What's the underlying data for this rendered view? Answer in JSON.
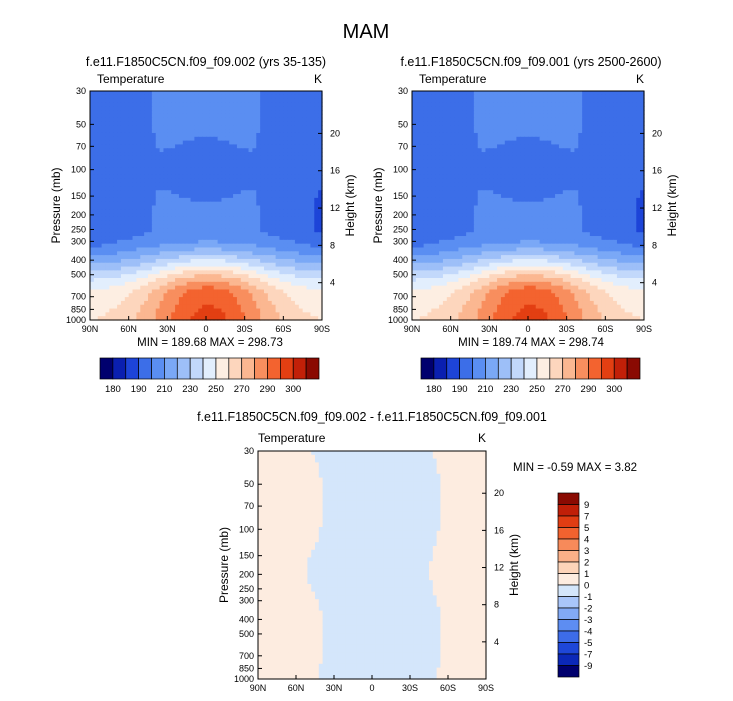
{
  "page_title": "MAM",
  "colors": {
    "temp_levels": [
      "#00006e",
      "#0a1fb0",
      "#1d44d8",
      "#3c6ee8",
      "#5a8ef2",
      "#7aa8f6",
      "#9dbff8",
      "#c2d8fb",
      "#e2eefd",
      "#fdeee2",
      "#fdd6bd",
      "#fbb791",
      "#f88e5e",
      "#f3632f",
      "#e33f12",
      "#c22008",
      "#8a0a02"
    ],
    "diff_levels": [
      "#00006e",
      "#0b28b8",
      "#1e47d8",
      "#3d6ce8",
      "#5d8df2",
      "#82aaf6",
      "#a9c6fa",
      "#d4e6fb",
      "#fdece0",
      "#fdd4b9",
      "#fbb088",
      "#f78a5a",
      "#f1622f",
      "#e03d13",
      "#c01f08",
      "#8a0a02"
    ]
  },
  "chart_data": [
    {
      "panel": "model-002",
      "type": "contour",
      "title": "f.e11.F1850C5CN.f09_f09.002 (yrs 35-135)",
      "variable_label": "Temperature",
      "units_label": "K",
      "ylabel": "Pressure (mb)",
      "y2label": "Height (km)",
      "x_ticks": [
        "90N",
        "60N",
        "30N",
        "0",
        "30S",
        "60S",
        "90S"
      ],
      "y_ticks": [
        "30",
        "50",
        "70",
        "100",
        "150",
        "200",
        "250",
        "300",
        "400",
        "500",
        "700",
        "850",
        "1000"
      ],
      "y_ticks_values": [
        30,
        50,
        70,
        100,
        150,
        200,
        250,
        300,
        400,
        500,
        700,
        850,
        1000
      ],
      "y2_ticks": [
        "20",
        "16",
        "12",
        "8",
        "4"
      ],
      "y2_ticks_values": [
        20,
        16,
        12,
        8,
        4
      ],
      "stats": "MIN = 189.68  MAX = 298.73",
      "min": 189.68,
      "max": 298.73,
      "colorbar_labels": [
        "180",
        "190",
        "210",
        "230",
        "250",
        "270",
        "290",
        "300"
      ]
    },
    {
      "panel": "model-001",
      "type": "contour",
      "title": "f.e11.F1850C5CN.f09_f09.001 (yrs 2500-2600)",
      "variable_label": "Temperature",
      "units_label": "K",
      "ylabel": "Pressure (mb)",
      "y2label": "Height (km)",
      "x_ticks": [
        "90N",
        "60N",
        "30N",
        "0",
        "30S",
        "60S",
        "90S"
      ],
      "y_ticks": [
        "30",
        "50",
        "70",
        "100",
        "150",
        "200",
        "250",
        "300",
        "400",
        "500",
        "700",
        "850",
        "1000"
      ],
      "y_ticks_values": [
        30,
        50,
        70,
        100,
        150,
        200,
        250,
        300,
        400,
        500,
        700,
        850,
        1000
      ],
      "y2_ticks": [
        "20",
        "16",
        "12",
        "8",
        "4"
      ],
      "y2_ticks_values": [
        20,
        16,
        12,
        8,
        4
      ],
      "stats": "MIN = 189.74  MAX = 298.74",
      "min": 189.74,
      "max": 298.74,
      "colorbar_labels": [
        "180",
        "190",
        "210",
        "230",
        "250",
        "270",
        "290",
        "300"
      ]
    },
    {
      "panel": "difference",
      "type": "contour",
      "title": "f.e11.F1850C5CN.f09_f09.002 - f.e11.F1850C5CN.f09_f09.001",
      "variable_label": "Temperature",
      "units_label": "K",
      "ylabel": "Pressure (mb)",
      "y2label": "Height (km)",
      "x_ticks": [
        "90N",
        "60N",
        "30N",
        "0",
        "30S",
        "60S",
        "90S"
      ],
      "y_ticks": [
        "30",
        "50",
        "70",
        "100",
        "150",
        "200",
        "250",
        "300",
        "400",
        "500",
        "700",
        "850",
        "1000"
      ],
      "y_ticks_values": [
        30,
        50,
        70,
        100,
        150,
        200,
        250,
        300,
        400,
        500,
        700,
        850,
        1000
      ],
      "y2_ticks": [
        "20",
        "16",
        "12",
        "8",
        "4"
      ],
      "y2_ticks_values": [
        20,
        16,
        12,
        8,
        4
      ],
      "stats": "MIN =  -0.59  MAX =   3.82",
      "min": -0.59,
      "max": 3.82,
      "colorbar_labels": [
        "9",
        "7",
        "5",
        "4",
        "3",
        "2",
        "1",
        "0",
        "-1",
        "-2",
        "-3",
        "-4",
        "-5",
        "-7",
        "-9"
      ]
    }
  ]
}
